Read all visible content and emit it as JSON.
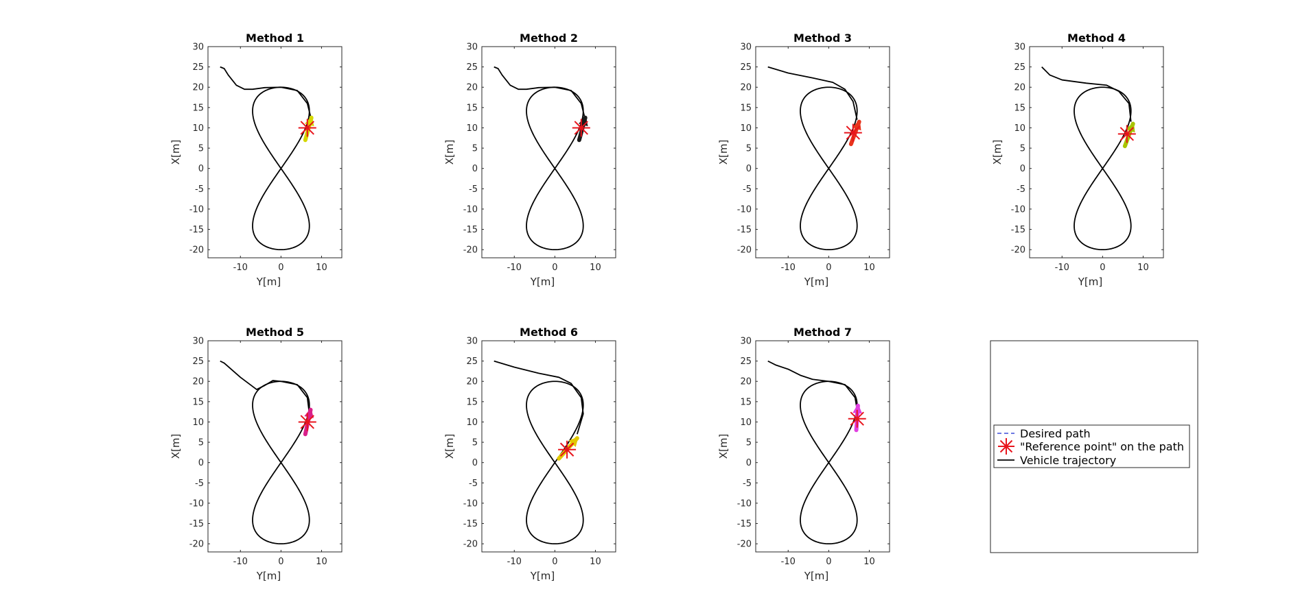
{
  "figure": {
    "legend": {
      "entries": [
        "Desired path",
        "\"Reference point\" on the path",
        "Vehicle trajectory"
      ]
    }
  },
  "chart_data": [
    {
      "type": "line",
      "title": "Method 1",
      "xlabel": "Y[m]",
      "ylabel": "X[m]",
      "xlim": [
        -18,
        15
      ],
      "ylim": [
        -22,
        30
      ],
      "x_ticks": [
        "-10",
        "0",
        "10"
      ],
      "y_ticks": [
        "30",
        "25",
        "20",
        "15",
        "10",
        "5",
        "0",
        "-5",
        "-10",
        "-15",
        "-20"
      ],
      "series": [
        {
          "role": "trajectory",
          "values": [
            [
              -15,
              25
            ],
            [
              -14,
              24.6
            ],
            [
              -13,
              23
            ],
            [
              -11,
              20.5
            ],
            [
              -9,
              19.5
            ],
            [
              -7,
              19.5
            ],
            [
              -4,
              19.9
            ],
            [
              0,
              20
            ],
            [
              4,
              19.2
            ],
            [
              6.5,
              16
            ],
            [
              7.5,
              12
            ]
          ]
        }
      ],
      "reference_point": [
        6.5,
        10
      ],
      "arrow": {
        "from": [
          6,
          7
        ],
        "to": [
          7.5,
          12.5
        ],
        "color": "#d4d700"
      }
    },
    {
      "type": "line",
      "title": "Method 2",
      "xlabel": "Y[m]",
      "ylabel": "X[m]",
      "xlim": [
        -18,
        15
      ],
      "ylim": [
        -22,
        30
      ],
      "x_ticks": [
        "-10",
        "0",
        "10"
      ],
      "y_ticks": [
        "30",
        "25",
        "20",
        "15",
        "10",
        "5",
        "0",
        "-5",
        "-10",
        "-15",
        "-20"
      ],
      "series": [
        {
          "role": "trajectory",
          "values": [
            [
              -15,
              25
            ],
            [
              -14,
              24.6
            ],
            [
              -13,
              23
            ],
            [
              -11,
              20.5
            ],
            [
              -9,
              19.5
            ],
            [
              -7,
              19.5
            ],
            [
              -4,
              19.9
            ],
            [
              0,
              20
            ],
            [
              4,
              19.2
            ],
            [
              6.5,
              16
            ],
            [
              7.5,
              12
            ]
          ]
        }
      ],
      "reference_point": [
        6.5,
        10
      ],
      "arrow": {
        "from": [
          6,
          7
        ],
        "to": [
          7.5,
          12.5
        ],
        "color": "#1a1a1a"
      }
    },
    {
      "type": "line",
      "title": "Method 3",
      "xlabel": "Y[m]",
      "ylabel": "X[m]",
      "xlim": [
        -18,
        15
      ],
      "ylim": [
        -22,
        30
      ],
      "x_ticks": [
        "-10",
        "0",
        "10"
      ],
      "y_ticks": [
        "30",
        "25",
        "20",
        "15",
        "10",
        "5",
        "0",
        "-5",
        "-10",
        "-15",
        "-20"
      ],
      "series": [
        {
          "role": "trajectory",
          "values": [
            [
              -15,
              25
            ],
            [
              -10,
              23.5
            ],
            [
              -4,
              22.3
            ],
            [
              1,
              21.2
            ],
            [
              4,
              19.5
            ],
            [
              6,
              16.5
            ],
            [
              7,
              12
            ]
          ]
        }
      ],
      "reference_point": [
        6,
        8.8
      ],
      "arrow": {
        "from": [
          5.5,
          6
        ],
        "to": [
          7.5,
          11.5
        ],
        "color": "#e8341c"
      }
    },
    {
      "type": "line",
      "title": "Method 4",
      "xlabel": "Y[m]",
      "ylabel": "X[m]",
      "xlim": [
        -18,
        15
      ],
      "ylim": [
        -22,
        30
      ],
      "x_ticks": [
        "-10",
        "0",
        "10"
      ],
      "y_ticks": [
        "30",
        "25",
        "20",
        "15",
        "10",
        "5",
        "0",
        "-5",
        "-10",
        "-15",
        "-20"
      ],
      "series": [
        {
          "role": "trajectory",
          "values": [
            [
              -15,
              25
            ],
            [
              -13,
              23
            ],
            [
              -10,
              21.8
            ],
            [
              -4,
              21
            ],
            [
              1,
              20.5
            ],
            [
              4,
              19
            ],
            [
              6.5,
              16
            ],
            [
              7,
              11.5
            ]
          ]
        }
      ],
      "reference_point": [
        6,
        8.5
      ],
      "arrow": {
        "from": [
          5.5,
          5.5
        ],
        "to": [
          7.5,
          11
        ],
        "color": "#a8c400"
      }
    },
    {
      "type": "line",
      "title": "Method 5",
      "xlabel": "Y[m]",
      "ylabel": "X[m]",
      "xlim": [
        -18,
        15
      ],
      "ylim": [
        -22,
        30
      ],
      "x_ticks": [
        "-10",
        "0",
        "10"
      ],
      "y_ticks": [
        "30",
        "25",
        "20",
        "15",
        "10",
        "5",
        "0",
        "-5",
        "-10",
        "-15",
        "-20"
      ],
      "series": [
        {
          "role": "trajectory",
          "values": [
            [
              -15,
              25
            ],
            [
              -14,
              24.5
            ],
            [
              -10,
              21
            ],
            [
              -6,
              18
            ],
            [
              -4,
              19
            ],
            [
              -2,
              20.2
            ],
            [
              0,
              20
            ],
            [
              4,
              19.2
            ],
            [
              6.5,
              16
            ],
            [
              7,
              12
            ]
          ]
        }
      ],
      "reference_point": [
        6.5,
        10
      ],
      "arrow": {
        "from": [
          6,
          7
        ],
        "to": [
          7.3,
          13
        ],
        "color": "#d9208a"
      }
    },
    {
      "type": "line",
      "title": "Method 6",
      "xlabel": "Y[m]",
      "ylabel": "X[m]",
      "xlim": [
        -18,
        15
      ],
      "ylim": [
        -22,
        30
      ],
      "x_ticks": [
        "-10",
        "0",
        "10"
      ],
      "y_ticks": [
        "30",
        "25",
        "20",
        "15",
        "10",
        "5",
        "0",
        "-5",
        "-10",
        "-15",
        "-20"
      ],
      "series": [
        {
          "role": "trajectory",
          "values": [
            [
              -15,
              25
            ],
            [
              -10,
              23.5
            ],
            [
              -4,
              22
            ],
            [
              1,
              21
            ],
            [
              4,
              19.5
            ],
            [
              6.5,
              16
            ],
            [
              7,
              12
            ],
            [
              5.5,
              7
            ]
          ]
        }
      ],
      "reference_point": [
        3,
        3.2
      ],
      "arrow": {
        "from": [
          1,
          1
        ],
        "to": [
          5.5,
          6
        ],
        "color": "#e2c800"
      }
    },
    {
      "type": "line",
      "title": "Method 7",
      "xlabel": "Y[m]",
      "ylabel": "X[m]",
      "xlim": [
        -18,
        15
      ],
      "ylim": [
        -22,
        30
      ],
      "x_ticks": [
        "-10",
        "0",
        "10"
      ],
      "y_ticks": [
        "30",
        "25",
        "20",
        "15",
        "10",
        "5",
        "0",
        "-5",
        "-10",
        "-15",
        "-20"
      ],
      "series": [
        {
          "role": "trajectory",
          "values": [
            [
              -15,
              25
            ],
            [
              -13,
              24
            ],
            [
              -10,
              23
            ],
            [
              -7,
              21.5
            ],
            [
              -4,
              20.5
            ],
            [
              0,
              20
            ],
            [
              4,
              19.2
            ],
            [
              6.5,
              16
            ],
            [
              7,
              13
            ]
          ]
        }
      ],
      "reference_point": [
        7,
        10.8
      ],
      "arrow": {
        "from": [
          6.8,
          8
        ],
        "to": [
          7.2,
          14
        ],
        "color": "#e040e0"
      }
    }
  ],
  "colors": {
    "desired_path": "#3b4bd8",
    "reference_point": "#e8141c",
    "trajectory": "#000000",
    "axes": "#262626"
  }
}
